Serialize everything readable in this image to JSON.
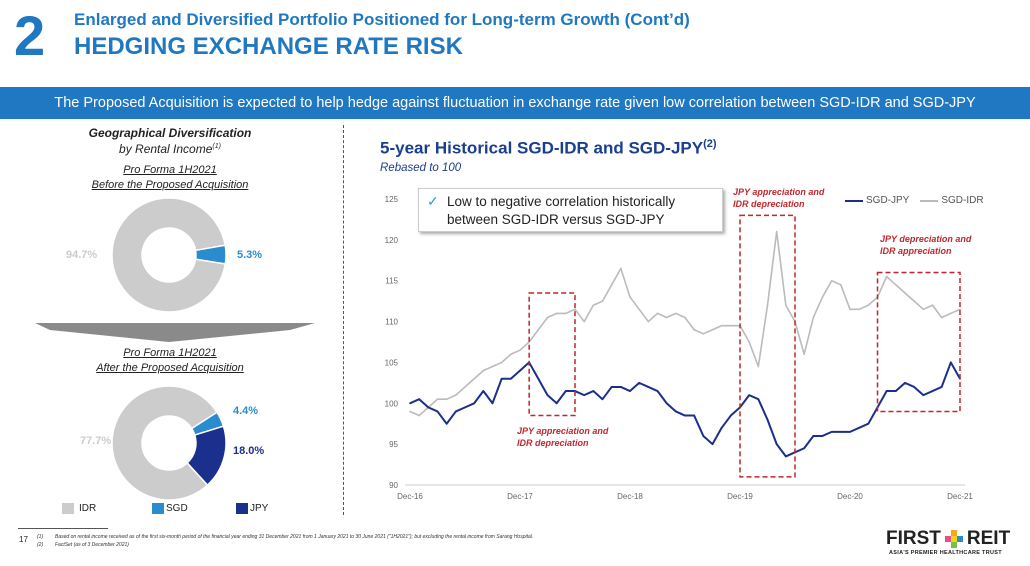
{
  "header": {
    "section_number": "2",
    "title": "Enlarged and Diversified Portfolio Positioned for Long-term Growth (Cont’d)",
    "subtitle": "HEDGING EXCHANGE RATE RISK"
  },
  "banner": "The Proposed Acquisition is expected to help hedge against fluctuation in exchange rate given low correlation between SGD-IDR and SGD-JPY",
  "left_panel": {
    "title": "Geographical Diversification",
    "subtitle": "by Rental Income",
    "subtitle_note": "(1)",
    "before_label_1": "Pro Forma 1H2021",
    "before_label_2": "Before the Proposed Acquisition",
    "after_label_1": "Pro Forma 1H2021",
    "after_label_2": "After the Proposed Acquisition",
    "legend": [
      {
        "label": "IDR",
        "color": "#cccccc"
      },
      {
        "label": "SGD",
        "color": "#2a8ccf"
      },
      {
        "label": "JPY",
        "color": "#1b2f8c"
      }
    ]
  },
  "chart_data": [
    {
      "type": "pie",
      "style": "donut",
      "title": "Pro Forma 1H2021 Before the Proposed Acquisition",
      "slices": [
        {
          "label": "SGD",
          "value": 5.3,
          "display": "5.3%",
          "color": "#2a8ccf"
        },
        {
          "label": "IDR",
          "value": 94.7,
          "display": "94.7%",
          "color": "#cccccc"
        }
      ]
    },
    {
      "type": "pie",
      "style": "donut",
      "title": "Pro Forma 1H2021 After the Proposed Acquisition",
      "slices": [
        {
          "label": "SGD",
          "value": 4.4,
          "display": "4.4%",
          "color": "#2a8ccf"
        },
        {
          "label": "JPY",
          "value": 18.0,
          "display": "18.0%",
          "color": "#1b2f8c"
        },
        {
          "label": "IDR",
          "value": 77.7,
          "display": "77.7%",
          "color": "#cccccc"
        }
      ]
    },
    {
      "type": "line",
      "title": "5-year Historical SGD-IDR and SGD-JPY",
      "title_note": "(2)",
      "subtitle": "Rebased to 100",
      "x_start": "Dec-16",
      "x_frequency": "monthly",
      "xticks": [
        "Dec-16",
        "Dec-17",
        "Dec-18",
        "Dec-19",
        "Dec-20",
        "Dec-21"
      ],
      "yticks": [
        90,
        95,
        100,
        105,
        110,
        115,
        120,
        125
      ],
      "ylim": [
        90,
        125
      ],
      "grid": false,
      "legend": "top-right",
      "series": [
        {
          "name": "SGD-JPY",
          "color": "#1b2f8c",
          "values": [
            100,
            100.5,
            99.5,
            99,
            97.5,
            99,
            99.5,
            100,
            101.5,
            100,
            103,
            103,
            104,
            105,
            103,
            101,
            100,
            101.5,
            101.5,
            101,
            101.5,
            100.5,
            102,
            102,
            101.5,
            102.5,
            102,
            101.5,
            100,
            99,
            98.5,
            98.5,
            96,
            95,
            97,
            98.5,
            99.5,
            101,
            100.5,
            98,
            95,
            93.5,
            94,
            94.5,
            96,
            96,
            96.5,
            96.5,
            96.5,
            97,
            97.5,
            99.5,
            101.5,
            101.5,
            102.5,
            102,
            101,
            101.5,
            102,
            105,
            103
          ]
        },
        {
          "name": "SGD-IDR",
          "color": "#bbbbbb",
          "values": [
            99,
            98.5,
            99.5,
            100.5,
            100.5,
            101,
            102,
            103,
            104,
            104.5,
            105,
            106,
            106.5,
            107.5,
            109,
            110.5,
            111,
            111,
            111.5,
            110,
            112,
            112.5,
            114.5,
            116.5,
            113,
            111.5,
            110,
            111,
            110.5,
            111,
            110.5,
            109,
            108.5,
            109,
            109.5,
            109.5,
            109.5,
            107.5,
            104.5,
            112,
            121,
            112,
            110,
            106,
            110.5,
            113,
            115,
            114.5,
            111.5,
            111.5,
            112,
            113,
            115.5,
            114.5,
            113.5,
            112.5,
            111.5,
            112,
            110.5,
            111,
            111.5
          ]
        }
      ],
      "annotations": [
        {
          "text_1": "JPY appreciation and",
          "text_2": "IDR depreciation",
          "x_from": "Jan-18",
          "x_to": "Jun-18",
          "y_from": 98.5,
          "y_to": 113.5
        },
        {
          "text_1": "JPY appreciation and",
          "text_2": "IDR depreciation",
          "x_from": "Dec-19",
          "x_to": "Jun-20",
          "y_from": 91,
          "y_to": 123
        },
        {
          "text_1": "JPY depreciation and",
          "text_2": "IDR appreciation",
          "x_from": "Mar-21",
          "x_to": "Dec-21",
          "y_from": 99,
          "y_to": 116
        }
      ],
      "callout": {
        "icon": "check-icon",
        "line_1": "Low to negative correlation historically",
        "line_2": "between SGD-IDR versus SGD-JPY"
      }
    }
  ],
  "footer": {
    "page": "17",
    "notes": [
      {
        "mark": "(1)",
        "text": "Based on rental income received as of the first six-month period of the financial year ending 31 December 2021 from 1 January 2021 to 30 June 2021 (\"1H2021\"); but excluding the rental income from Sarang Hospital."
      },
      {
        "mark": "(2)",
        "text": "FactSet (as of 3 December 2021)"
      }
    ]
  },
  "logo": {
    "text_left": "FIRST",
    "text_right": "REIT",
    "tagline": "ASIA'S PREMIER HEALTHCARE TRUST"
  }
}
